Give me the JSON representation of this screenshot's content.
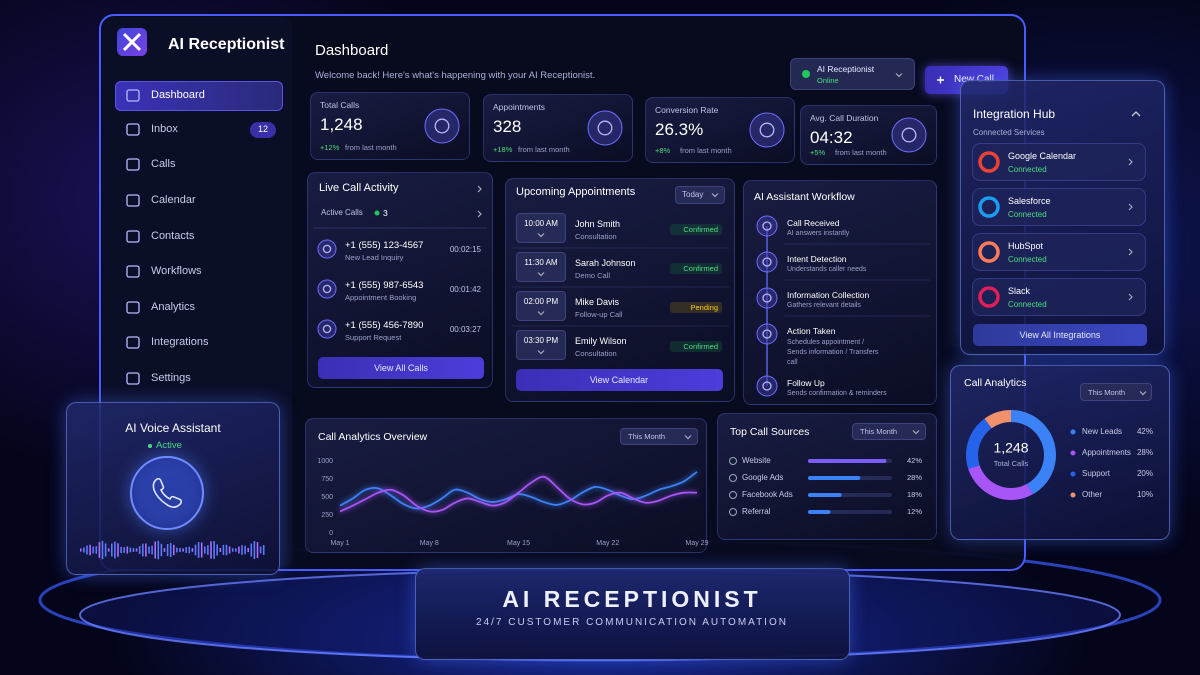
{
  "brand": "AI Receptionist",
  "nav": [
    {
      "label": "Dashboard"
    },
    {
      "label": "Inbox",
      "badge": "12"
    },
    {
      "label": "Calls"
    },
    {
      "label": "Calendar"
    },
    {
      "label": "Contacts"
    },
    {
      "label": "Workflows"
    },
    {
      "label": "Analytics"
    },
    {
      "label": "Integrations"
    },
    {
      "label": "Settings"
    }
  ],
  "header": {
    "title": "Dashboard",
    "subtitle": "Welcome back! Here's what's happening with your AI Receptionist."
  },
  "status": {
    "name": "AI Receptionist",
    "state": "Online"
  },
  "new_call": "New Call",
  "stats": [
    {
      "label": "Total Calls",
      "value": "1,248",
      "change": "+12%",
      "note": "from last month"
    },
    {
      "label": "Appointments",
      "value": "328",
      "change": "+18%",
      "note": "from last month"
    },
    {
      "label": "Conversion Rate",
      "value": "26.3%",
      "change": "+8%",
      "note": "from last month"
    },
    {
      "label": "Avg. Call Duration",
      "value": "04:32",
      "change": "+5%",
      "note": "from last month"
    }
  ],
  "live_calls": {
    "title": "Live Call Activity",
    "active_label": "Active Calls",
    "active_count": "3",
    "calls": [
      {
        "number": "+1 (555) 123-4567",
        "purpose": "New Lead Inquiry",
        "duration": "00:02:15"
      },
      {
        "number": "+1 (555) 987-6543",
        "purpose": "Appointment Booking",
        "duration": "00:01:42"
      },
      {
        "number": "+1 (555) 456-7890",
        "purpose": "Support Request",
        "duration": "00:03:27"
      }
    ],
    "button": "View All Calls"
  },
  "appointments": {
    "title": "Upcoming Appointments",
    "filter": "Today",
    "items": [
      {
        "time": "10:00 AM",
        "name": "John Smith",
        "type": "Consultation",
        "status": "Confirmed"
      },
      {
        "time": "11:30 AM",
        "name": "Sarah Johnson",
        "type": "Demo Call",
        "status": "Confirmed"
      },
      {
        "time": "02:00 PM",
        "name": "Mike Davis",
        "type": "Follow-up Call",
        "status": "Pending"
      },
      {
        "time": "03:30 PM",
        "name": "Emily Wilson",
        "type": "Consultation",
        "status": "Confirmed"
      }
    ],
    "button": "View Calendar"
  },
  "workflow": {
    "title": "AI Assistant Workflow",
    "steps": [
      {
        "title": "Call Received",
        "desc": "AI answers instantly"
      },
      {
        "title": "Intent Detection",
        "desc": "Understands caller needs"
      },
      {
        "title": "Information Collection",
        "desc": "Gathers relevant details"
      },
      {
        "title": "Action Taken",
        "desc": "Schedules appointment / Sends information / Transfers call"
      },
      {
        "title": "Follow Up",
        "desc": "Sends confirmation & reminders"
      }
    ]
  },
  "integrations": {
    "title": "Integration Hub",
    "subtitle": "Connected Services",
    "items": [
      {
        "name": "Google Calendar",
        "status": "Connected"
      },
      {
        "name": "Salesforce",
        "status": "Connected"
      },
      {
        "name": "HubSpot",
        "status": "Connected"
      },
      {
        "name": "Slack",
        "status": "Connected"
      }
    ],
    "button": "View All Integrations"
  },
  "voice_assistant": {
    "title": "AI Voice Assistant",
    "status": "Active"
  },
  "banner": {
    "title": "AI RECEPTIONIST",
    "subtitle": "24/7 CUSTOMER COMMUNICATION AUTOMATION"
  },
  "chart_data": [
    {
      "type": "line",
      "title": "Call Analytics Overview",
      "filter": "This Month",
      "categories": [
        "May 1",
        null,
        null,
        null,
        null,
        null,
        null,
        "May 8",
        null,
        null,
        null,
        null,
        null,
        null,
        "May 15",
        null,
        null,
        null,
        null,
        null,
        null,
        "May 22",
        null,
        null,
        null,
        null,
        null,
        null,
        "May 29"
      ],
      "series": [
        {
          "color": "#3b82f6",
          "values": [
            380,
            480,
            600,
            620,
            520,
            400,
            340,
            380,
            480,
            600,
            560,
            470,
            430,
            470,
            540,
            500,
            430,
            390,
            450,
            560,
            640,
            600,
            520,
            470,
            520,
            600,
            650,
            720,
            850
          ]
        },
        {
          "color": "#a855f7",
          "values": [
            300,
            380,
            470,
            560,
            600,
            520,
            380,
            300,
            320,
            420,
            480,
            430,
            380,
            430,
            560,
            700,
            780,
            640,
            480,
            400,
            420,
            520,
            560,
            480,
            420,
            450,
            520,
            560,
            560
          ]
        }
      ],
      "ylim": [
        0,
        1000
      ],
      "yticks": [
        0,
        250,
        500,
        750,
        1000
      ]
    },
    {
      "type": "hbar",
      "title": "Top Call Sources",
      "filter": "This Month",
      "categories": [
        "Website",
        "Google Ads",
        "Facebook Ads",
        "Referral"
      ],
      "values": [
        42,
        28,
        18,
        12
      ],
      "value_labels": [
        "42%",
        "28%",
        "18%",
        "12%"
      ],
      "colors": [
        "#7c5cff",
        "#3b82f6",
        "#3b82f6",
        "#3b82f6"
      ],
      "xlim": [
        0,
        45
      ]
    },
    {
      "type": "donut",
      "title": "Call Analytics",
      "filter": "This Month",
      "center_value": "1,248",
      "center_label": "Total Calls",
      "categories": [
        "New Leads",
        "Appointments",
        "Support",
        "Other"
      ],
      "values": [
        42,
        28,
        20,
        10
      ],
      "value_labels": [
        "42%",
        "28%",
        "20%",
        "10%"
      ],
      "colors": [
        "#3b82f6",
        "#a855f7",
        "#2563eb",
        "#f0916b"
      ]
    }
  ]
}
